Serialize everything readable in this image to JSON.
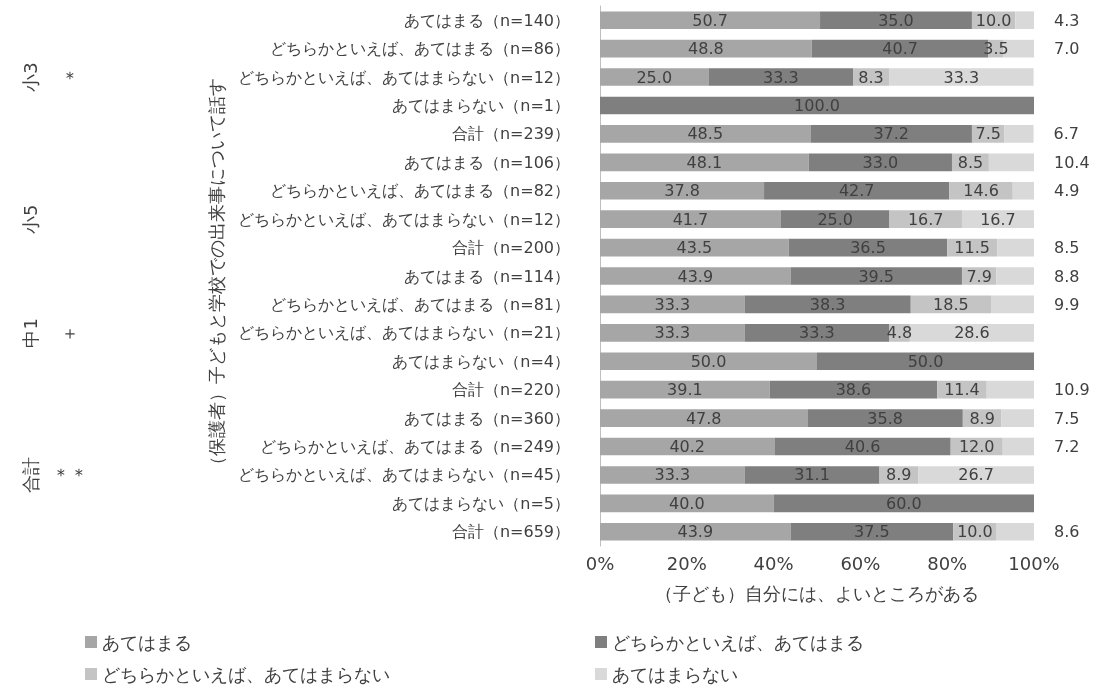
{
  "chart_data": {
    "type": "bar",
    "orientation": "horizontal",
    "stacked": true,
    "ylabel": "（保護者）子どもと学校での出来事について話す",
    "xlabel": "（子ども）自分には、よいところがある",
    "categories": [
      "あてはまる（n=140）",
      "どちらかといえば、あてはまる（n=86）",
      "どちらかといえば、あてはまらない（n=12）",
      "あてはまらない（n=1）",
      "合計（n=239）",
      "あてはまる（n=106）",
      "どちらかといえば、あてはまる（n=82）",
      "どちらかといえば、あてはまらない（n=12）",
      "合計（n=200）",
      "あてはまる（n=114）",
      "どちらかといえば、あてはまる（n=81）",
      "どちらかといえば、あてはまらない（n=21）",
      "あてはまらない（n=4）",
      "合計（n=220）",
      "あてはまる（n=360）",
      "どちらかといえば、あてはまる（n=249）",
      "どちらかといえば、あてはまらない（n=45）",
      "あてはまらない（n=5）",
      "合計（n=659）"
    ],
    "series": [
      {
        "name": "あてはまる",
        "color": "#a6a6a6",
        "values": [
          50.7,
          48.8,
          25.0,
          null,
          48.5,
          48.1,
          37.8,
          41.7,
          43.5,
          43.9,
          33.3,
          33.3,
          50.0,
          39.1,
          47.8,
          40.2,
          33.3,
          40.0,
          43.9
        ],
        "value_labels": [
          "50.7",
          "48.8",
          "25.0",
          null,
          "48.5",
          "48.1",
          "37.8",
          "41.7",
          "43.5",
          "43.9",
          "33.3",
          "33.3",
          "50.0",
          "39.1",
          "47.8",
          "40.2",
          "33.3",
          "40.0",
          "43.9"
        ]
      },
      {
        "name": "どちらかといえば、あてはまる",
        "color": "#7f7f7f",
        "values": [
          35.0,
          40.7,
          33.3,
          100.0,
          37.2,
          33.0,
          42.7,
          25.0,
          36.5,
          39.5,
          38.3,
          33.3,
          50.0,
          38.6,
          35.8,
          40.6,
          31.1,
          60.0,
          37.5
        ],
        "value_labels": [
          "35.0",
          "40.7",
          "33.3",
          "100.0",
          "37.2",
          "33.0",
          "42.7",
          "25.0",
          "36.5",
          "39.5",
          "38.3",
          "33.3",
          "50.0",
          "38.6",
          "35.8",
          "40.6",
          "31.1",
          "60.0",
          "37.5"
        ]
      },
      {
        "name": "どちらかといえば、あてはまらない",
        "color": "#c4c4c4",
        "values": [
          10.0,
          3.5,
          8.3,
          null,
          7.5,
          8.5,
          14.6,
          16.7,
          11.5,
          7.9,
          18.5,
          4.8,
          null,
          11.4,
          8.9,
          12.0,
          8.9,
          null,
          10.0
        ],
        "value_labels": [
          "10.0",
          "3.5",
          "8.3",
          null,
          "7.5",
          "8.5",
          "14.6",
          "16.7",
          "11.5",
          "7.9",
          "18.5",
          "4.8",
          null,
          "11.4",
          "8.9",
          "12.0",
          "8.9",
          null,
          "10.0"
        ]
      },
      {
        "name": "あてはまらない",
        "color": "#d9d9d9",
        "values": [
          4.3,
          7.0,
          33.3,
          null,
          6.7,
          10.4,
          4.9,
          16.7,
          8.5,
          8.8,
          9.9,
          28.6,
          null,
          10.9,
          7.5,
          7.2,
          26.7,
          null,
          8.6
        ],
        "value_labels": [
          "4.3",
          "7.0",
          "33.3",
          null,
          "6.7",
          "10.4",
          "4.9",
          "16.7",
          "8.5",
          "8.8",
          "9.9",
          "28.6",
          null,
          "10.9",
          "7.5",
          "7.2",
          "26.7",
          null,
          "8.6"
        ]
      }
    ],
    "xlim": [
      0,
      100
    ],
    "xticks": [
      {
        "value": 0,
        "label": "0%"
      },
      {
        "value": 20,
        "label": "20%"
      },
      {
        "value": 40,
        "label": "40%"
      },
      {
        "value": 60,
        "label": "60%"
      },
      {
        "value": 80,
        "label": "80%"
      },
      {
        "value": 100,
        "label": "100%"
      }
    ],
    "grid": false,
    "legend": "bottom",
    "annotations": [
      "小3",
      "＊",
      "小5",
      "中1",
      "＋",
      "合計",
      "＊＊"
    ]
  }
}
